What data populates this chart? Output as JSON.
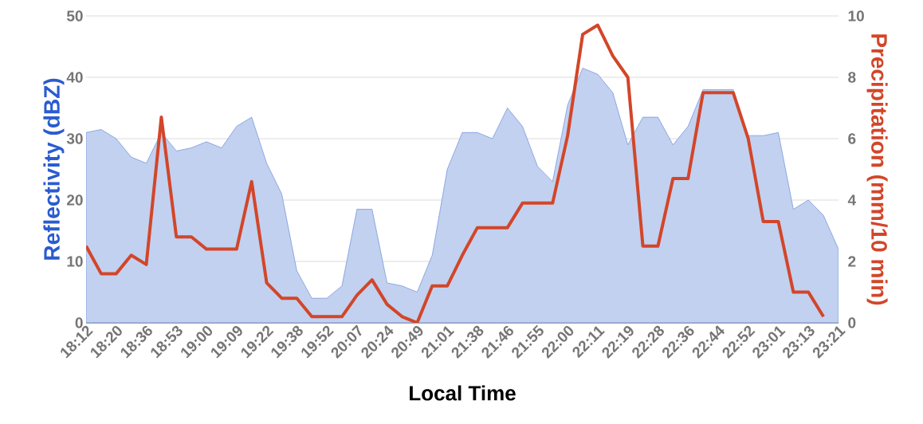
{
  "chart_data": {
    "type": "line",
    "xlabel": "Local Time",
    "ylabel": "Reflectivity (dBZ)",
    "y2label": "Precipitation (mm/10 min)",
    "categories": [
      "18:12",
      null,
      "18:20",
      null,
      "18:36",
      null,
      "18:53",
      null,
      "19:00",
      null,
      "19:09",
      null,
      "19:22",
      null,
      "19:38",
      null,
      "19:52",
      null,
      "20:07",
      null,
      "20:24",
      null,
      "20:49",
      null,
      "21:01",
      null,
      "21:38",
      null,
      "21:46",
      null,
      "21:55",
      null,
      "22:00",
      null,
      "22:11",
      null,
      "22:19",
      null,
      "22:28",
      null,
      "22:36",
      null,
      "22:44",
      null,
      "22:52",
      null,
      "23:01",
      null,
      "23:13",
      null,
      "23:21"
    ],
    "series": [
      {
        "type": "area",
        "color": "#c2d1ef",
        "values": [
          31,
          31.5,
          30,
          27,
          26,
          31,
          28,
          28.5,
          29.5,
          28.5,
          32,
          33.5,
          26,
          21,
          8.5,
          4,
          4,
          6,
          18.5,
          18.5,
          6.5,
          6,
          5,
          11,
          25,
          31,
          31,
          30,
          35,
          32,
          25.5,
          23,
          35.5,
          41.5,
          40.5,
          37.5,
          29,
          33.5,
          33.5,
          29,
          32,
          38,
          38,
          38,
          30.5,
          30.5,
          31,
          18.5,
          20,
          17.5,
          12
        ]
      },
      {
        "axis": "y2",
        "color": "#d2462a",
        "values": [
          2.5,
          1.6,
          1.6,
          2.2,
          1.9,
          6.7,
          2.8,
          2.8,
          2.4,
          2.4,
          2.4,
          4.6,
          1.3,
          0.8,
          0.8,
          0.2,
          0.2,
          0.2,
          0.9,
          1.4,
          0.6,
          0.2,
          0,
          1.2,
          1.2,
          2.2,
          3.1,
          3.1,
          3.1,
          3.9,
          3.9,
          3.9,
          6.1,
          9.4,
          9.7,
          8.7,
          8,
          2.5,
          2.5,
          4.7,
          4.7,
          7.5,
          7.5,
          7.5,
          6,
          3.3,
          3.3,
          1,
          1,
          0.2,
          null
        ]
      }
    ],
    "ylim": [
      0,
      50
    ],
    "yticks": [
      0,
      10,
      20,
      30,
      40,
      50
    ],
    "y2lim": [
      0,
      10
    ],
    "y2ticks": [
      0,
      2,
      4,
      6,
      8,
      10
    ],
    "grid": "y"
  }
}
